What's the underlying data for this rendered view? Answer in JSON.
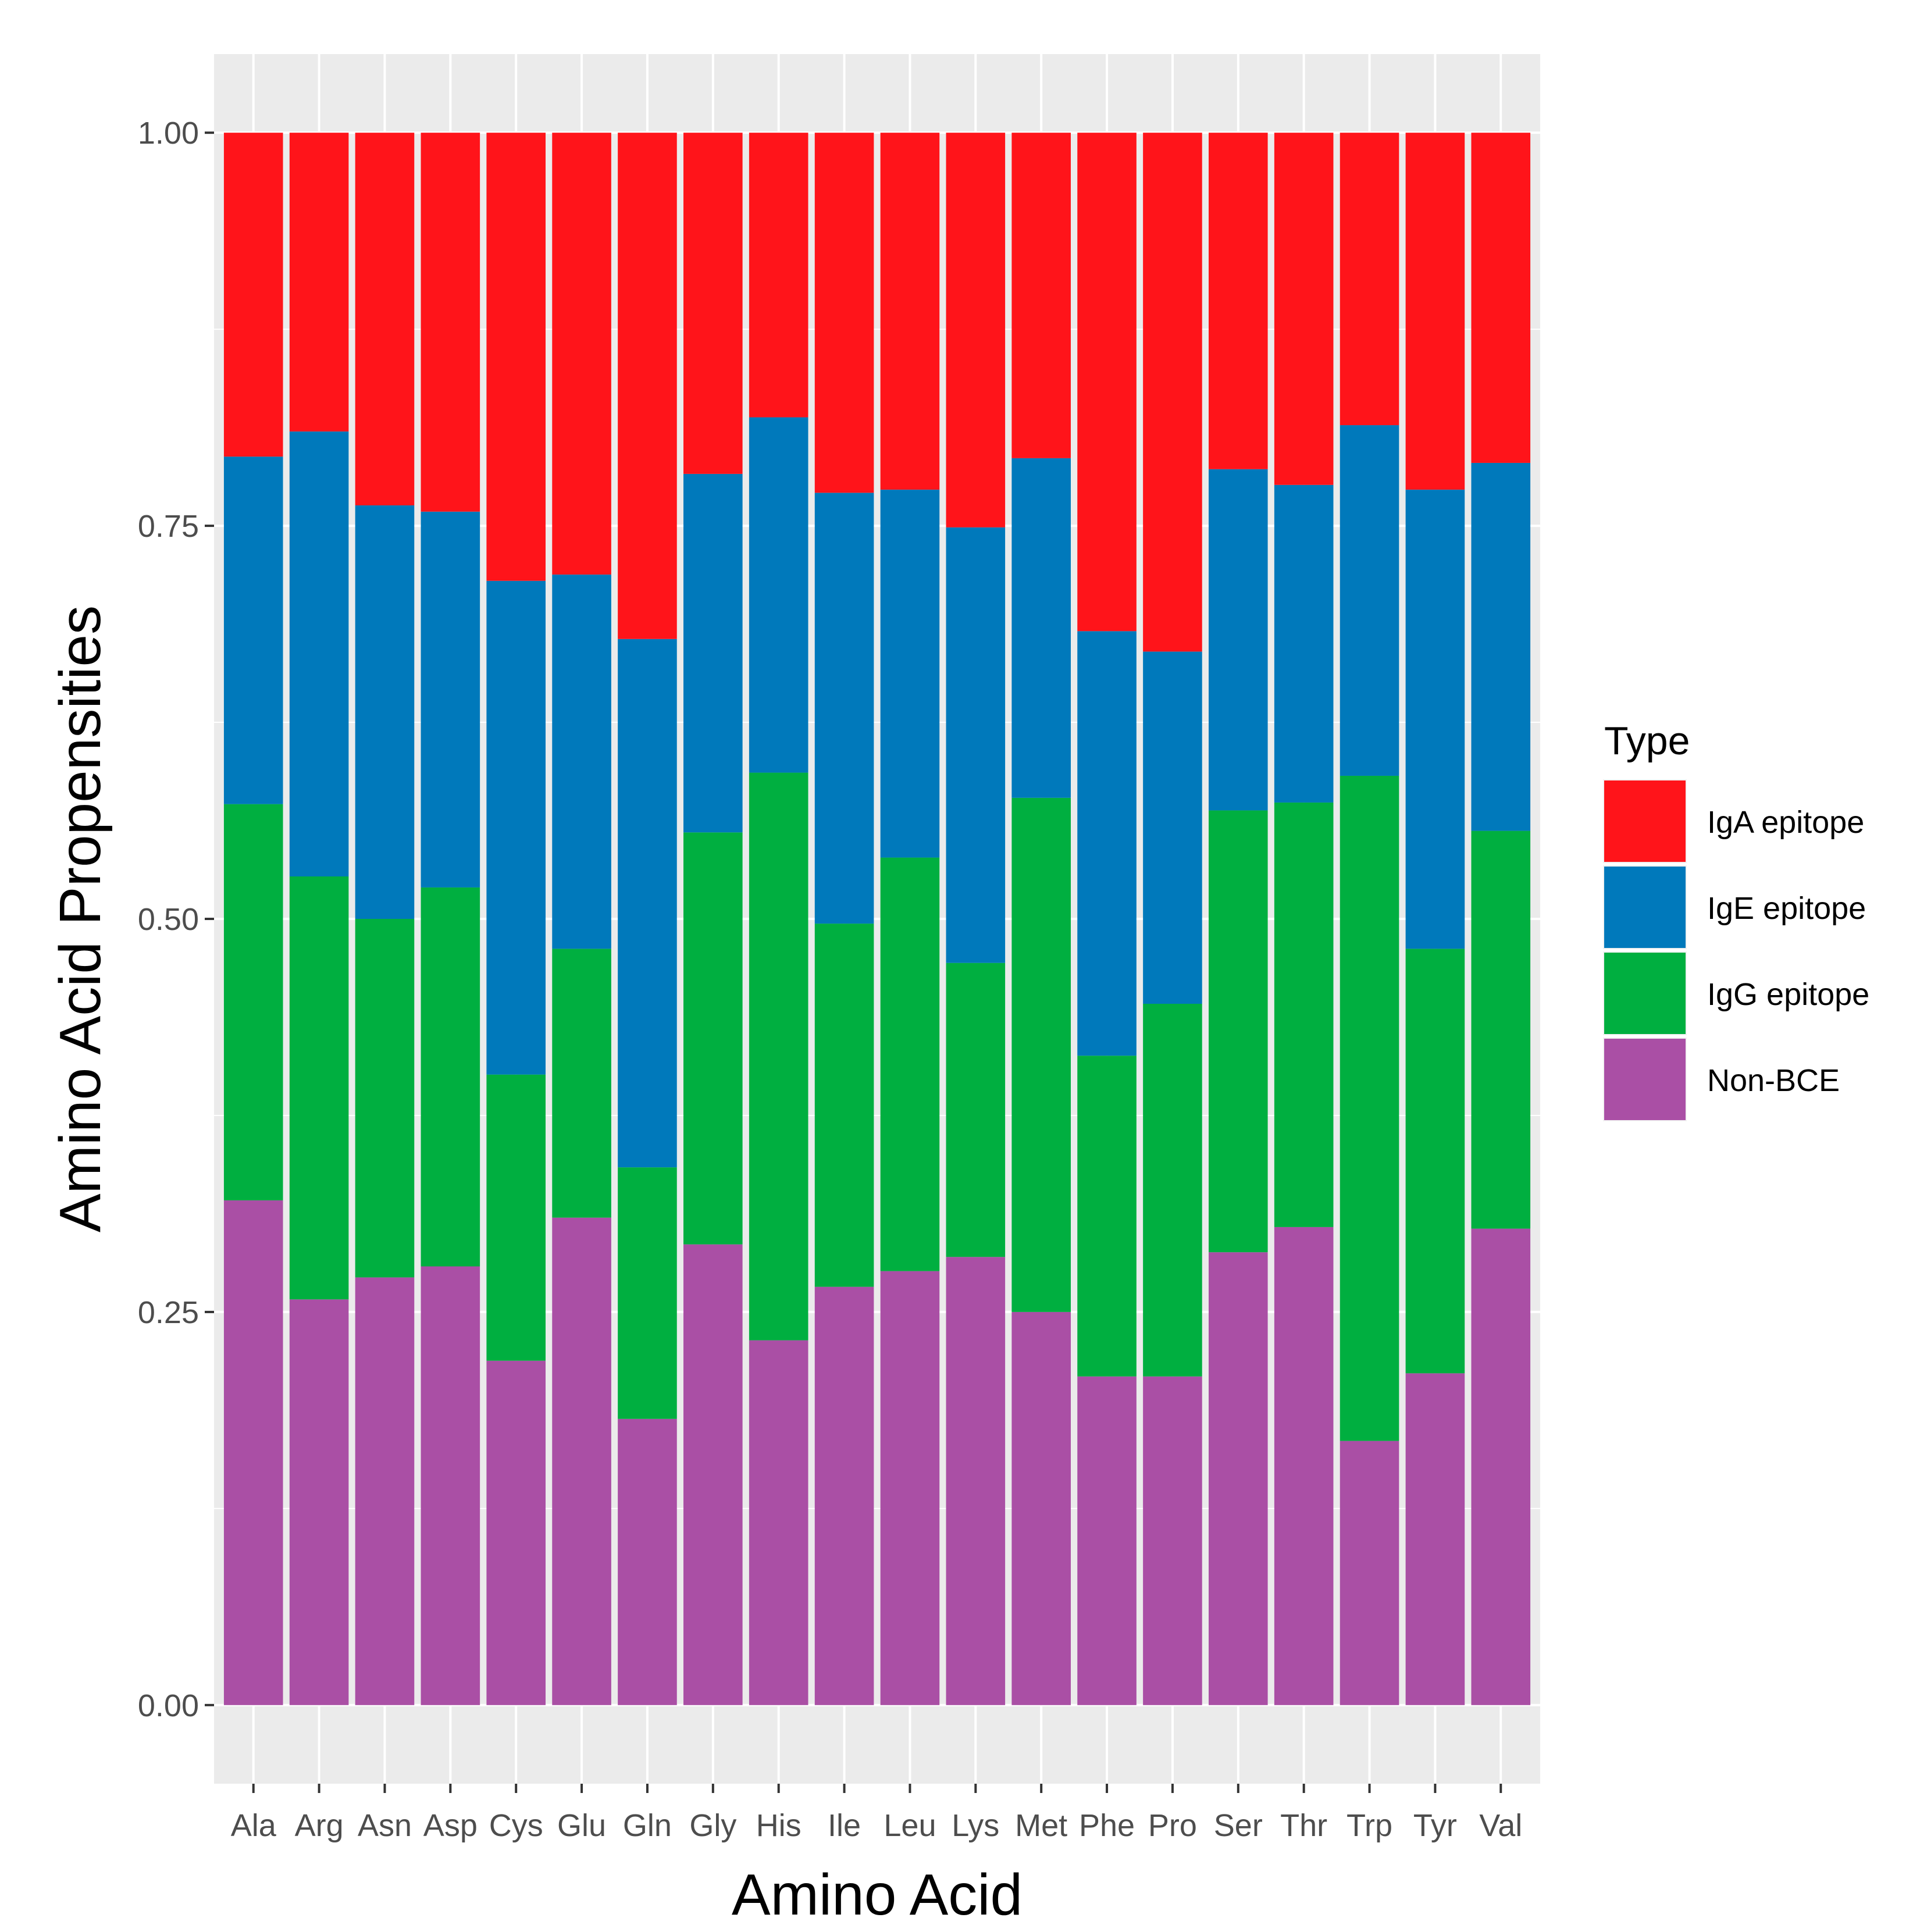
{
  "chart_data": {
    "type": "bar",
    "stacked": true,
    "xlabel": "Amino Acid",
    "ylabel": "Amino Acid Propensities",
    "ylim": [
      -0.05,
      1.05
    ],
    "yticks": [
      "0.00",
      "0.25",
      "0.50",
      "0.75",
      "1.00"
    ],
    "categories": [
      "Ala",
      "Arg",
      "Asn",
      "Asp",
      "Cys",
      "Glu",
      "Gln",
      "Gly",
      "His",
      "Ile",
      "Leu",
      "Lys",
      "Met",
      "Phe",
      "Pro",
      "Ser",
      "Thr",
      "Trp",
      "Tyr",
      "Val"
    ],
    "series": [
      {
        "name": "Non-BCE",
        "color": "#AA4FA5",
        "values": [
          0.321,
          0.258,
          0.272,
          0.279,
          0.219,
          0.31,
          0.182,
          0.293,
          0.232,
          0.266,
          0.276,
          0.285,
          0.25,
          0.209,
          0.209,
          0.288,
          0.304,
          0.168,
          0.211,
          0.303
        ]
      },
      {
        "name": "IgG epitope",
        "color": "#00AF40",
        "values": [
          0.252,
          0.269,
          0.228,
          0.241,
          0.182,
          0.171,
          0.16,
          0.262,
          0.361,
          0.231,
          0.263,
          0.187,
          0.327,
          0.204,
          0.237,
          0.281,
          0.27,
          0.423,
          0.27,
          0.253
        ]
      },
      {
        "name": "IgE epitope",
        "color": "#0079BB",
        "values": [
          0.221,
          0.283,
          0.263,
          0.239,
          0.314,
          0.238,
          0.336,
          0.228,
          0.226,
          0.274,
          0.234,
          0.277,
          0.216,
          0.27,
          0.224,
          0.217,
          0.202,
          0.223,
          0.292,
          0.234
        ]
      },
      {
        "name": "IgA epitope",
        "color": "#FF141A",
        "values": [
          0.206,
          0.19,
          0.237,
          0.241,
          0.285,
          0.281,
          0.322,
          0.217,
          0.181,
          0.229,
          0.227,
          0.251,
          0.207,
          0.317,
          0.33,
          0.214,
          0.224,
          0.186,
          0.227,
          0.21
        ]
      }
    ],
    "legend": {
      "title": "Type",
      "position": "right",
      "order": [
        "IgA epitope",
        "IgE epitope",
        "IgG epitope",
        "Non-BCE"
      ]
    },
    "grid": true,
    "background": "#EBEBEB",
    "gridline_color": "#FFFFFF"
  }
}
